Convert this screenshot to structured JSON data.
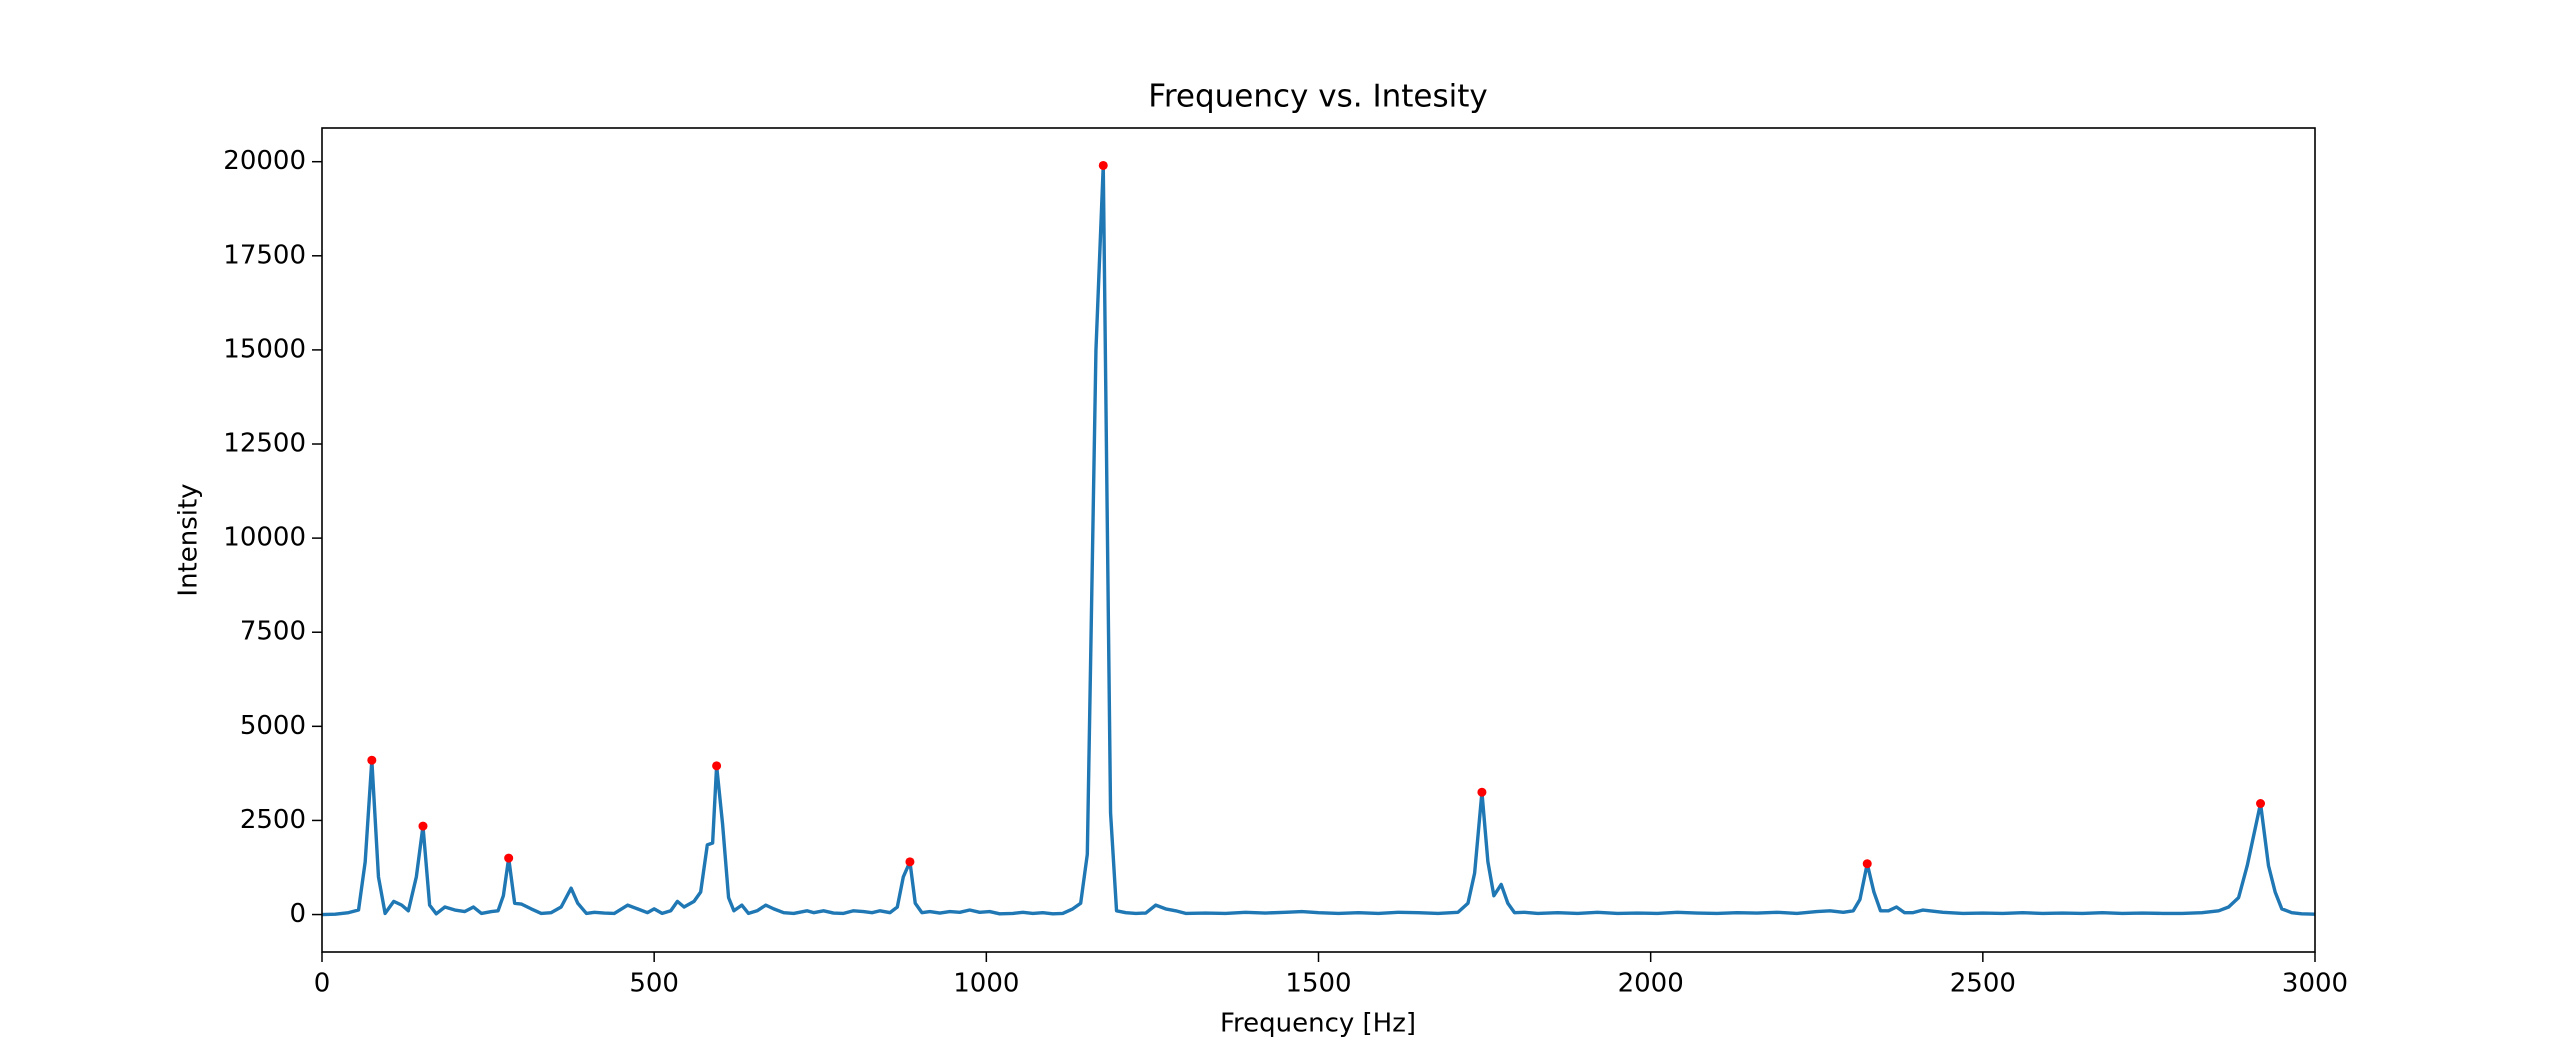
{
  "chart_data": {
    "type": "line",
    "title": "Frequency vs. Intesity",
    "x_label": "Frequency [Hz]",
    "y_label": "Intensity",
    "x": [
      0,
      20,
      40,
      55,
      65,
      75,
      85,
      95,
      108,
      120,
      130,
      142,
      152,
      162,
      172,
      185,
      200,
      215,
      228,
      240,
      255,
      265,
      273,
      281,
      290,
      300,
      315,
      330,
      345,
      360,
      375,
      385,
      398,
      410,
      425,
      440,
      460,
      475,
      490,
      500,
      512,
      525,
      535,
      545,
      560,
      570,
      580,
      588,
      594,
      603,
      612,
      620,
      632,
      642,
      655,
      668,
      680,
      695,
      710,
      730,
      740,
      755,
      770,
      785,
      800,
      815,
      828,
      840,
      855,
      866,
      875,
      885,
      893,
      903,
      915,
      930,
      945,
      960,
      975,
      990,
      1005,
      1020,
      1040,
      1055,
      1070,
      1085,
      1100,
      1115,
      1130,
      1142,
      1152,
      1165,
      1176,
      1187,
      1196,
      1210,
      1225,
      1240,
      1255,
      1270,
      1285,
      1300,
      1330,
      1360,
      1390,
      1420,
      1450,
      1475,
      1500,
      1530,
      1560,
      1590,
      1620,
      1650,
      1680,
      1710,
      1725,
      1735,
      1746,
      1755,
      1764,
      1775,
      1785,
      1795,
      1810,
      1830,
      1860,
      1890,
      1920,
      1950,
      1980,
      2010,
      2040,
      2070,
      2100,
      2130,
      2160,
      2190,
      2220,
      2250,
      2270,
      2290,
      2305,
      2315,
      2326,
      2336,
      2346,
      2358,
      2370,
      2382,
      2395,
      2410,
      2440,
      2470,
      2500,
      2530,
      2560,
      2590,
      2620,
      2650,
      2680,
      2710,
      2740,
      2770,
      2800,
      2830,
      2855,
      2870,
      2885,
      2898,
      2918,
      2930,
      2940,
      2950,
      2965,
      2980,
      3000
    ],
    "series": [
      {
        "color": "#1f77b4",
        "values": [
          0,
          10,
          50,
          120,
          1400,
          4100,
          1000,
          30,
          350,
          250,
          100,
          1000,
          2350,
          250,
          20,
          200,
          120,
          80,
          200,
          30,
          80,
          100,
          500,
          1500,
          300,
          280,
          150,
          30,
          50,
          200,
          700,
          300,
          30,
          60,
          40,
          30,
          250,
          150,
          50,
          150,
          30,
          100,
          350,
          200,
          350,
          600,
          1850,
          1900,
          3950,
          2400,
          450,
          100,
          250,
          30,
          100,
          250,
          150,
          50,
          30,
          100,
          50,
          100,
          40,
          30,
          100,
          80,
          50,
          100,
          50,
          200,
          1000,
          1400,
          300,
          50,
          80,
          40,
          80,
          60,
          120,
          60,
          80,
          20,
          30,
          60,
          30,
          50,
          20,
          30,
          150,
          300,
          1600,
          15000,
          19900,
          2700,
          100,
          50,
          30,
          40,
          250,
          150,
          100,
          30,
          40,
          30,
          60,
          40,
          60,
          80,
          50,
          30,
          50,
          30,
          60,
          50,
          30,
          60,
          300,
          1100,
          3250,
          1400,
          500,
          800,
          300,
          50,
          60,
          30,
          50,
          30,
          60,
          30,
          40,
          30,
          60,
          40,
          30,
          50,
          40,
          60,
          30,
          80,
          100,
          60,
          100,
          400,
          1350,
          600,
          100,
          100,
          200,
          50,
          50,
          120,
          60,
          30,
          40,
          30,
          50,
          30,
          40,
          30,
          50,
          30,
          40,
          30,
          30,
          50,
          100,
          200,
          450,
          1300,
          2950,
          1300,
          600,
          150,
          50,
          20,
          10
        ]
      }
    ],
    "peaks": {
      "color": "#ff0000",
      "x": [
        75,
        152,
        281,
        594,
        885,
        1176,
        1746,
        2326,
        2918
      ],
      "values": [
        4100,
        2350,
        1500,
        3950,
        1400,
        19900,
        3250,
        1350,
        2950
      ]
    },
    "xlim": [
      0,
      3000
    ],
    "xticks": [
      0,
      500,
      1000,
      1500,
      2000,
      2500,
      3000
    ],
    "ylim": [
      -995,
      20895
    ],
    "yticks": [
      0,
      2500,
      5000,
      7500,
      10000,
      12500,
      15000,
      17500,
      20000
    ],
    "grid": false
  }
}
